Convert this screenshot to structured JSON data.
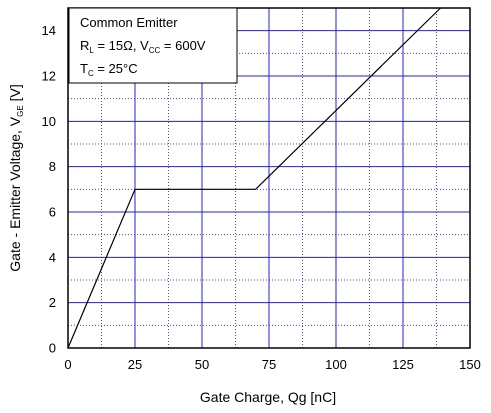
{
  "chart_data": {
    "type": "line",
    "title": "",
    "xlabel": "Gate Charge, Qg [nC]",
    "ylabel": {
      "main": "Gate - Emitter Voltage, V",
      "sub": "GE",
      "unit": " [V]"
    },
    "xlim": [
      0,
      150
    ],
    "ylim": [
      0,
      15
    ],
    "xticks": [
      0,
      25,
      50,
      75,
      100,
      125,
      150
    ],
    "yticks": [
      0,
      2,
      4,
      6,
      8,
      10,
      12,
      14
    ],
    "grid": true,
    "series": [
      {
        "x": [
          0,
          25,
          70,
          139
        ],
        "y": [
          0,
          7,
          7,
          15
        ]
      }
    ],
    "annotation": {
      "line1": "Common Emitter",
      "line2": {
        "r": "R",
        "r_sub": "L",
        "r_value": " = 15Ω, V",
        "v_sub": "CC",
        "v_value": " = 600V"
      },
      "line3": {
        "t": "T",
        "t_sub": "C",
        "t_value": " = 25°C"
      },
      "placement": "top-left"
    },
    "colors": {
      "major_grid": "#2020dd",
      "minor_grid": "#4a4ae6",
      "line": "#000000",
      "axes": "#000000"
    }
  }
}
